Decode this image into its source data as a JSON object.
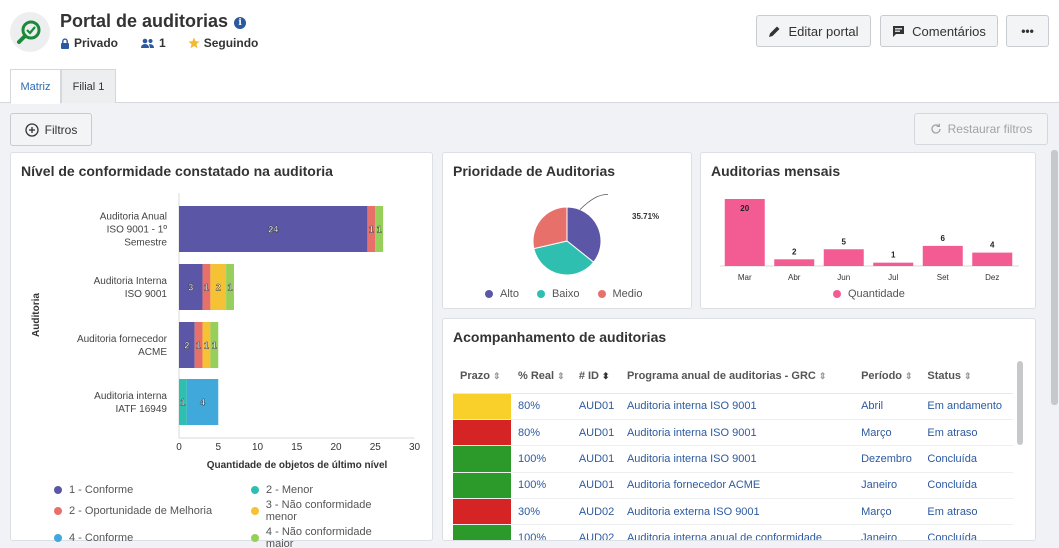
{
  "header": {
    "title": "Portal de auditorias",
    "privacy": "Privado",
    "members": "1",
    "following": "Seguindo",
    "edit_label": "Editar portal",
    "comments_label": "Comentários",
    "more_label": "•••"
  },
  "tabs": [
    {
      "label": "Matriz"
    },
    {
      "label": "Filial 1"
    }
  ],
  "toolbar": {
    "filters_label": "Filtros",
    "reset_label": "Restaurar filtros"
  },
  "colors": {
    "conforme": "#5b57a6",
    "oportunidade": "#e8706a",
    "conforme4": "#41a8dc",
    "menor": "#2fbfb1",
    "nc_menor": "#f5c236",
    "nc_maior": "#96cf5a",
    "pink": "#f35c93",
    "alto": "#5b57a6",
    "baixo": "#2fbfb1",
    "medio": "#e8706a",
    "status_yellow": "#f9d02a",
    "status_red": "#d62323",
    "status_green": "#2c9a2a"
  },
  "conformity": {
    "title": "Nível de conformidade constatado na auditoria",
    "chart_data": {
      "type": "bar",
      "orientation": "horizontal",
      "stacked": true,
      "categories": [
        "Auditoria Anual ISO 9001 - 1º Semestre",
        "Auditoria Interna ISO 9001",
        "Auditoria fornecedor ACME",
        "Auditoria interna IATF 16949"
      ],
      "series": [
        {
          "name": "1 - Conforme",
          "values": [
            24,
            3,
            2,
            0
          ]
        },
        {
          "name": "2 - Oportunidade de Melhoria",
          "values": [
            1,
            1,
            1,
            0
          ]
        },
        {
          "name": "2 - Menor",
          "values": [
            0,
            0,
            0,
            1
          ]
        },
        {
          "name": "3 - Não conformidade menor",
          "values": [
            0,
            2,
            1,
            0
          ]
        },
        {
          "name": "4 - Conforme",
          "values": [
            0,
            0,
            0,
            4
          ]
        },
        {
          "name": "4 - Não conformidade maior",
          "values": [
            1,
            1,
            1,
            0
          ]
        }
      ],
      "xlim": [
        0,
        30
      ],
      "xticks": [
        0,
        5,
        10,
        15,
        20,
        25,
        30
      ],
      "xlabel": "Quantidade de objetos de último nível",
      "ylabel": "Auditoria",
      "legend": "bottom"
    }
  },
  "priority": {
    "title": "Prioridade de Auditorias",
    "chart_data": {
      "type": "pie",
      "labels": [
        "Alto",
        "Baixo",
        "Medio"
      ],
      "values": [
        35.71,
        35.71,
        28.58
      ],
      "annotation": "35.71%",
      "legend": "bottom"
    }
  },
  "monthly": {
    "title": "Auditorias mensais",
    "chart_data": {
      "type": "bar",
      "categories": [
        "Mar",
        "Abr",
        "Jun",
        "Jul",
        "Set",
        "Dez"
      ],
      "series": [
        {
          "name": "Quantidade",
          "values": [
            20,
            2,
            5,
            1,
            6,
            4
          ]
        }
      ],
      "legend": "bottom"
    }
  },
  "tracking": {
    "title": "Acompanhamento de auditorias",
    "columns": [
      "Prazo",
      "% Real",
      "# ID",
      "Programa anual de auditorias - GRC",
      "Período",
      "Status"
    ],
    "rows": [
      {
        "prazo": "yellow",
        "real": "80%",
        "id": "AUD01",
        "programa": "Auditoria interna ISO 9001",
        "periodo": "Abril",
        "status": "Em andamento"
      },
      {
        "prazo": "red",
        "real": "80%",
        "id": "AUD01",
        "programa": "Auditoria interna ISO 9001",
        "periodo": "Março",
        "status": "Em atraso"
      },
      {
        "prazo": "green",
        "real": "100%",
        "id": "AUD01",
        "programa": "Auditoria interna ISO 9001",
        "periodo": "Dezembro",
        "status": "Concluída"
      },
      {
        "prazo": "green",
        "real": "100%",
        "id": "AUD01",
        "programa": "Auditoria fornecedor ACME",
        "periodo": "Janeiro",
        "status": "Concluída"
      },
      {
        "prazo": "red",
        "real": "30%",
        "id": "AUD02",
        "programa": "Auditoria externa ISO 9001",
        "periodo": "Março",
        "status": "Em atraso"
      },
      {
        "prazo": "green",
        "real": "100%",
        "id": "AUD02",
        "programa": "Auditoria interna anual de conformidade",
        "periodo": "Janeiro",
        "status": "Concluída"
      }
    ]
  }
}
